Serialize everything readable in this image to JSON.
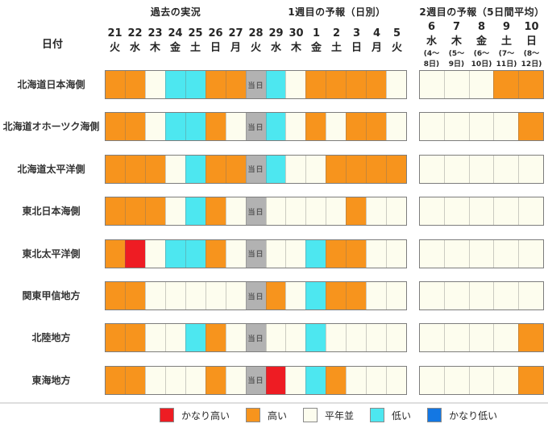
{
  "chart_data": {
    "type": "heatmap",
    "section_titles": {
      "past": "過去の実況",
      "week1": "1週目の予報（日別）",
      "week2": "2週目の予報（5日間平均）"
    },
    "date_axis_label": "日付",
    "today_label": "当日",
    "today_column_date": "28",
    "daily_columns": [
      {
        "date": "21",
        "day": "火"
      },
      {
        "date": "22",
        "day": "水"
      },
      {
        "date": "23",
        "day": "木"
      },
      {
        "date": "24",
        "day": "金"
      },
      {
        "date": "25",
        "day": "土"
      },
      {
        "date": "26",
        "day": "日"
      },
      {
        "date": "27",
        "day": "月"
      },
      {
        "date": "28",
        "day": "火"
      },
      {
        "date": "29",
        "day": "水"
      },
      {
        "date": "30",
        "day": "木"
      },
      {
        "date": "1",
        "day": "金"
      },
      {
        "date": "2",
        "day": "土"
      },
      {
        "date": "3",
        "day": "日"
      },
      {
        "date": "4",
        "day": "月"
      },
      {
        "date": "5",
        "day": "火"
      }
    ],
    "weekly_columns": [
      {
        "date": "6",
        "day": "水",
        "range_line1": "(4～",
        "range_line2": "8日)"
      },
      {
        "date": "7",
        "day": "木",
        "range_line1": "(5～",
        "range_line2": "9日)"
      },
      {
        "date": "8",
        "day": "金",
        "range_line1": "(6～",
        "range_line2": "10日)"
      },
      {
        "date": "9",
        "day": "土",
        "range_line1": "(7～",
        "range_line2": "11日)"
      },
      {
        "date": "10",
        "day": "日",
        "range_line1": "(8～",
        "range_line2": "12日)"
      }
    ],
    "value_levels": {
      "VH": "かなり高い",
      "H": "高い",
      "N": "平年並",
      "L": "低い",
      "VL": "かなり低い",
      "T": "当日"
    },
    "colors": {
      "VH": "#ee1c23",
      "H": "#f7941d",
      "N": "#fdfdee",
      "L": "#4de7f0",
      "VL": "#1377e3",
      "T": "#b2b2b2"
    },
    "rows": [
      {
        "region": "北海道日本海側",
        "daily": [
          "H",
          "H",
          "N",
          "L",
          "L",
          "H",
          "H",
          "T",
          "L",
          "N",
          "H",
          "H",
          "H",
          "H",
          "N"
        ],
        "weekly": [
          "N",
          "N",
          "N",
          "H",
          "H"
        ]
      },
      {
        "region": "北海道オホーツク海側",
        "daily": [
          "H",
          "H",
          "N",
          "L",
          "L",
          "H",
          "N",
          "T",
          "L",
          "N",
          "H",
          "N",
          "H",
          "H",
          "N"
        ],
        "weekly": [
          "N",
          "N",
          "N",
          "N",
          "H"
        ]
      },
      {
        "region": "北海道太平洋側",
        "daily": [
          "H",
          "H",
          "H",
          "N",
          "L",
          "H",
          "H",
          "T",
          "L",
          "N",
          "N",
          "H",
          "H",
          "H",
          "H"
        ],
        "weekly": [
          "N",
          "N",
          "N",
          "N",
          "N"
        ]
      },
      {
        "region": "東北日本海側",
        "daily": [
          "H",
          "H",
          "H",
          "N",
          "L",
          "H",
          "N",
          "T",
          "N",
          "N",
          "N",
          "N",
          "H",
          "N",
          "N"
        ],
        "weekly": [
          "N",
          "N",
          "N",
          "N",
          "N"
        ]
      },
      {
        "region": "東北太平洋側",
        "daily": [
          "H",
          "VH",
          "N",
          "L",
          "L",
          "H",
          "N",
          "T",
          "N",
          "N",
          "L",
          "H",
          "H",
          "N",
          "N"
        ],
        "weekly": [
          "N",
          "N",
          "N",
          "N",
          "N"
        ]
      },
      {
        "region": "関東甲信地方",
        "daily": [
          "H",
          "H",
          "N",
          "N",
          "N",
          "N",
          "N",
          "T",
          "H",
          "N",
          "L",
          "H",
          "H",
          "N",
          "N"
        ],
        "weekly": [
          "N",
          "N",
          "N",
          "N",
          "N"
        ]
      },
      {
        "region": "北陸地方",
        "daily": [
          "H",
          "H",
          "N",
          "N",
          "L",
          "H",
          "N",
          "T",
          "N",
          "N",
          "L",
          "N",
          "N",
          "N",
          "N"
        ],
        "weekly": [
          "N",
          "N",
          "N",
          "N",
          "H"
        ]
      },
      {
        "region": "東海地方",
        "daily": [
          "H",
          "H",
          "N",
          "N",
          "N",
          "H",
          "N",
          "T",
          "VH",
          "N",
          "L",
          "H",
          "N",
          "N",
          "N"
        ],
        "weekly": [
          "N",
          "N",
          "N",
          "N",
          "H"
        ]
      }
    ],
    "legend": [
      {
        "key": "VH",
        "label": "かなり高い"
      },
      {
        "key": "H",
        "label": "高い"
      },
      {
        "key": "N",
        "label": "平年並"
      },
      {
        "key": "L",
        "label": "低い"
      },
      {
        "key": "VL",
        "label": "かなり低い"
      }
    ]
  }
}
